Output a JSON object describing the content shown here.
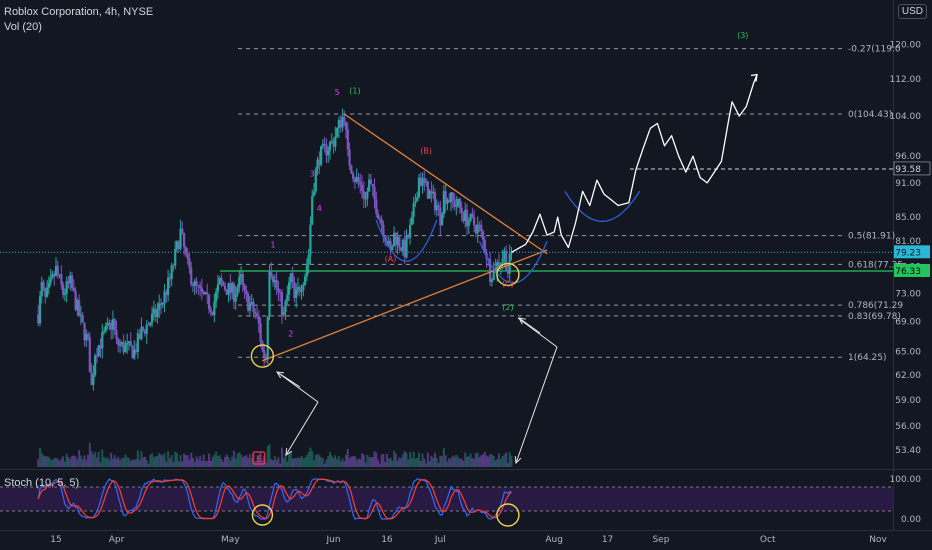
{
  "header": {
    "title": "Roblox Corporation, 4h, NYSE",
    "volume_label": "Vol (20)",
    "currency": "USD",
    "stoch_label": "Stoch (10, 5, 5)"
  },
  "colors": {
    "background": "#131722",
    "bull": "#26a69a",
    "bear": "#7e57c2",
    "trendline": "#e0803a",
    "fib_line": "#9598a1",
    "arc": "#2f5fd6",
    "projection": "#ffffff",
    "wave_green": "#22c55e",
    "wave_red": "#ef4444",
    "wave_magenta": "#e040fb",
    "current_price": "#2bb7d6",
    "support_price": "#21c45d",
    "stoch_k": "#2f6bff",
    "stoch_d": "#ff3b2f",
    "highlight_circle": "#e8d44d"
  },
  "chart_data": {
    "type": "candlestick",
    "symbol": "RBLX",
    "timeframe": "4h",
    "price_axis": {
      "scale": "log",
      "range": [
        51.5,
        126
      ],
      "ticks": [
        120.0,
        112.0,
        104.0,
        96.0,
        91.0,
        85.0,
        81.0,
        77.0,
        73.0,
        69.0,
        65.0,
        62.0,
        59.0,
        56.0,
        53.4
      ]
    },
    "time_axis": {
      "ticks": [
        "15",
        "Apr",
        "May",
        "Jun",
        "16",
        "Jul",
        "Aug",
        "17",
        "Sep",
        "Oct",
        "Nov"
      ],
      "tick_positions_dates": [
        "2021-03-15",
        "2021-04-01",
        "2021-05-03",
        "2021-06-01",
        "2021-06-16",
        "2021-07-01",
        "2021-08-02",
        "2021-08-17",
        "2021-09-01",
        "2021-10-01",
        "2021-11-01"
      ]
    },
    "price_path": [
      [
        "2021-03-10",
        70.0
      ],
      [
        "2021-03-11",
        74.0
      ],
      [
        "2021-03-12",
        72.0
      ],
      [
        "2021-03-15",
        76.5
      ],
      [
        "2021-03-17",
        73.0
      ],
      [
        "2021-03-19",
        74.5
      ],
      [
        "2021-03-22",
        69.0
      ],
      [
        "2021-03-24",
        66.0
      ],
      [
        "2021-03-25",
        60.5
      ],
      [
        "2021-03-26",
        65.0
      ],
      [
        "2021-03-29",
        67.5
      ],
      [
        "2021-03-31",
        69.0
      ],
      [
        "2021-04-01",
        66.0
      ],
      [
        "2021-04-06",
        65.0
      ],
      [
        "2021-04-08",
        67.5
      ],
      [
        "2021-04-12",
        70.0
      ],
      [
        "2021-04-14",
        72.0
      ],
      [
        "2021-04-16",
        75.0
      ],
      [
        "2021-04-19",
        82.5
      ],
      [
        "2021-04-21",
        77.0
      ],
      [
        "2021-04-23",
        74.0
      ],
      [
        "2021-04-26",
        72.0
      ],
      [
        "2021-04-28",
        71.0
      ],
      [
        "2021-04-30",
        74.5
      ],
      [
        "2021-05-04",
        73.0
      ],
      [
        "2021-05-06",
        75.0
      ],
      [
        "2021-05-07",
        72.5
      ],
      [
        "2021-05-10",
        70.0
      ],
      [
        "2021-05-11",
        68.5
      ],
      [
        "2021-05-12",
        65.0
      ],
      [
        "2021-05-13",
        64.25
      ],
      [
        "2021-05-14",
        77.5
      ],
      [
        "2021-05-17",
        72.0
      ],
      [
        "2021-05-18",
        69.78
      ],
      [
        "2021-05-20",
        75.5
      ],
      [
        "2021-05-21",
        72.0
      ],
      [
        "2021-05-24",
        76.0
      ],
      [
        "2021-05-25",
        79.0
      ],
      [
        "2021-05-26",
        89.0
      ],
      [
        "2021-05-27",
        93.0
      ],
      [
        "2021-05-28",
        96.0
      ],
      [
        "2021-06-01",
        99.0
      ],
      [
        "2021-06-03",
        103.0
      ],
      [
        "2021-06-04",
        104.43
      ],
      [
        "2021-06-05",
        96.0
      ],
      [
        "2021-06-07",
        92.0
      ],
      [
        "2021-06-09",
        90.0
      ],
      [
        "2021-06-10",
        88.0
      ],
      [
        "2021-06-11",
        91.0
      ],
      [
        "2021-06-14",
        85.0
      ],
      [
        "2021-06-16",
        81.0
      ],
      [
        "2021-06-17",
        79.0
      ],
      [
        "2021-06-18",
        82.0
      ],
      [
        "2021-06-21",
        79.5
      ],
      [
        "2021-06-23",
        84.0
      ],
      [
        "2021-06-24",
        88.0
      ],
      [
        "2021-06-25",
        92.0
      ],
      [
        "2021-06-28",
        89.0
      ],
      [
        "2021-06-30",
        87.0
      ],
      [
        "2021-07-01",
        85.0
      ],
      [
        "2021-07-02",
        89.0
      ],
      [
        "2021-07-06",
        87.0
      ],
      [
        "2021-07-08",
        85.0
      ],
      [
        "2021-07-09",
        84.5
      ],
      [
        "2021-07-12",
        83.0
      ],
      [
        "2021-07-14",
        79.0
      ],
      [
        "2021-07-15",
        76.0
      ],
      [
        "2021-07-16",
        76.5
      ],
      [
        "2021-07-19",
        79.0
      ],
      [
        "2021-07-20",
        76.33
      ],
      [
        "2021-07-21",
        79.23
      ]
    ],
    "projection_path": [
      [
        "2021-07-21",
        79.23
      ],
      [
        "2021-07-25",
        80.5
      ],
      [
        "2021-07-27",
        82.5
      ],
      [
        "2021-07-29",
        85.5
      ],
      [
        "2021-07-31",
        82.0
      ],
      [
        "2021-08-02",
        82.5
      ],
      [
        "2021-08-03",
        85.0
      ],
      [
        "2021-08-04",
        82.0
      ],
      [
        "2021-08-06",
        80.0
      ],
      [
        "2021-08-08",
        84.0
      ],
      [
        "2021-08-10",
        89.5
      ],
      [
        "2021-08-12",
        87.0
      ],
      [
        "2021-08-14",
        91.5
      ],
      [
        "2021-08-16",
        89.0
      ],
      [
        "2021-08-18",
        88.0
      ],
      [
        "2021-08-20",
        87.0
      ],
      [
        "2021-08-23",
        87.5
      ],
      [
        "2021-08-25",
        93.5
      ],
      [
        "2021-08-27",
        97.5
      ],
      [
        "2021-08-29",
        101.5
      ],
      [
        "2021-08-31",
        102.5
      ],
      [
        "2021-09-02",
        98.0
      ],
      [
        "2021-09-04",
        100.0
      ],
      [
        "2021-09-06",
        96.0
      ],
      [
        "2021-09-08",
        93.0
      ],
      [
        "2021-09-10",
        96.0
      ],
      [
        "2021-09-12",
        92.0
      ],
      [
        "2021-09-14",
        91.0
      ],
      [
        "2021-09-16",
        93.0
      ],
      [
        "2021-09-18",
        95.0
      ],
      [
        "2021-09-20",
        103.0
      ],
      [
        "2021-09-21",
        107.0
      ],
      [
        "2021-09-23",
        104.0
      ],
      [
        "2021-09-25",
        106.0
      ],
      [
        "2021-09-27",
        111.0
      ],
      [
        "2021-09-28",
        113.0
      ]
    ],
    "fib_levels": [
      {
        "label": "-0.27(119.0",
        "price": 119.0
      },
      {
        "label": "0(104.43)",
        "price": 104.43
      },
      {
        "label": "0.5(81.91)",
        "price": 81.91
      },
      {
        "label": "0.618(77.35",
        "price": 77.35
      },
      {
        "label": "0.786(71.29",
        "price": 71.29
      },
      {
        "label": "0.83(69.78)",
        "price": 69.78
      },
      {
        "label": "1(64.25)",
        "price": 64.25
      }
    ],
    "horizontal_lines": [
      {
        "price": 93.58,
        "label": "93.58"
      }
    ],
    "current_price": {
      "value": 79.23,
      "label": "79.23"
    },
    "support_price": {
      "value": 76.33,
      "label": "76.33"
    },
    "trendlines": [
      {
        "name": "upper",
        "from": [
          "2021-06-04",
          104.43
        ],
        "to": [
          "2021-07-31",
          79.0
        ]
      },
      {
        "name": "lower",
        "from": [
          "2021-05-12",
          63.8
        ],
        "to": [
          "2021-07-31",
          79.6
        ]
      }
    ],
    "wave_labels": [
      {
        "text": "5",
        "date": "2021-06-02",
        "price": 108.5,
        "color": "wave_magenta"
      },
      {
        "text": "(1)",
        "date": "2021-06-07",
        "price": 108.8,
        "color": "wave_green"
      },
      {
        "text": "(B)",
        "date": "2021-06-27",
        "price": 96.5,
        "color": "wave_red"
      },
      {
        "text": "1",
        "date": "2021-05-15",
        "price": 80.0,
        "color": "wave_magenta"
      },
      {
        "text": "2",
        "date": "2021-05-20",
        "price": 67.0,
        "color": "wave_magenta"
      },
      {
        "text": "3",
        "date": "2021-05-26",
        "price": 92.2,
        "color": "wave_magenta"
      },
      {
        "text": "4",
        "date": "2021-05-28",
        "price": 86.0,
        "color": "wave_magenta"
      },
      {
        "text": "(A)",
        "date": "2021-06-17",
        "price": 77.8,
        "color": "wave_red"
      },
      {
        "text": "(C)",
        "date": "2021-07-20",
        "price": 74.0,
        "color": "wave_red"
      },
      {
        "text": "(2)",
        "date": "2021-07-20",
        "price": 70.6,
        "color": "wave_green"
      },
      {
        "text": "(3)",
        "date": "2021-09-24",
        "price": 121.5,
        "color": "wave_green"
      }
    ],
    "earnings_marker": {
      "label": "E",
      "date": "2021-05-11"
    },
    "stochastic": {
      "params": [
        10,
        5,
        5
      ],
      "range": [
        0,
        100
      ],
      "ticks": [
        "100.00",
        "0.00"
      ],
      "bands": [
        80,
        20
      ]
    }
  }
}
